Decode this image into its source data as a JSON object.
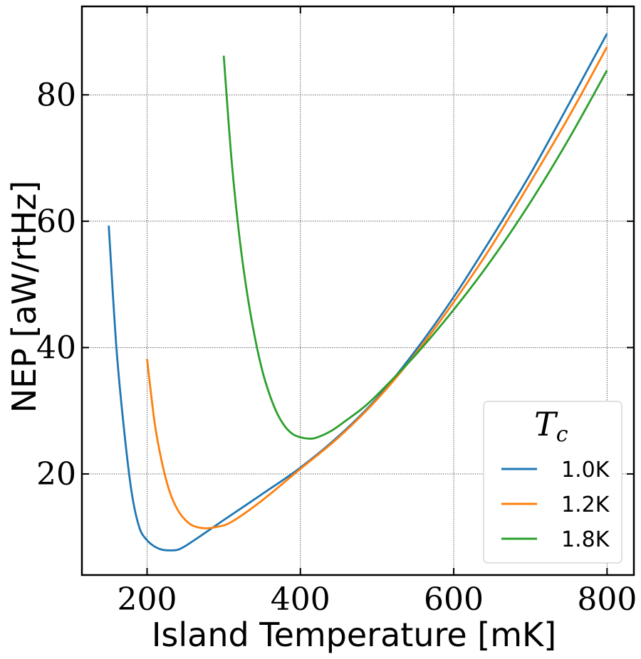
{
  "chart_data": {
    "type": "line",
    "title": "",
    "xlabel": "Island Temperature [mK]",
    "ylabel": "NEP [aW/rtHz]",
    "xlim": [
      115,
      835
    ],
    "ylim": [
      4,
      94
    ],
    "xticks": [
      200,
      400,
      600,
      800
    ],
    "yticks": [
      20,
      40,
      60,
      80
    ],
    "grid": true,
    "legend": {
      "title_main": "T",
      "title_sub": "c",
      "placement": "lower-right"
    },
    "series": [
      {
        "name": "1.0K",
        "color": "#1f77b4",
        "x": [
          150,
          160,
          170,
          180,
          190,
          200,
          210,
          220,
          230,
          240,
          250,
          270,
          300,
          350,
          400,
          450,
          500,
          550,
          600,
          650,
          700,
          750,
          800
        ],
        "y": [
          59.3,
          40.0,
          27.0,
          17.0,
          11.5,
          9.5,
          8.5,
          8.0,
          7.9,
          8.0,
          8.6,
          10.2,
          12.7,
          16.8,
          21.0,
          26.0,
          32.0,
          39.5,
          48.0,
          57.5,
          67.5,
          78.5,
          89.7
        ]
      },
      {
        "name": "1.2K",
        "color": "#ff7f0e",
        "x": [
          200,
          210,
          220,
          230,
          240,
          250,
          260,
          275,
          290,
          310,
          350,
          400,
          450,
          500,
          550,
          600,
          650,
          700,
          750,
          800
        ],
        "y": [
          38.2,
          28.0,
          21.5,
          17.0,
          14.3,
          12.7,
          11.8,
          11.4,
          11.6,
          12.4,
          15.8,
          20.8,
          25.8,
          31.8,
          39.0,
          47.2,
          56.2,
          66.2,
          76.5,
          87.6
        ]
      },
      {
        "name": "1.8K",
        "color": "#2ca02c",
        "x": [
          300,
          310,
          320,
          330,
          340,
          350,
          360,
          370,
          380,
          390,
          400,
          410,
          420,
          440,
          460,
          480,
          500,
          550,
          600,
          650,
          700,
          750,
          800
        ],
        "y": [
          86.2,
          70.0,
          58.0,
          49.0,
          42.0,
          36.5,
          32.5,
          29.5,
          27.5,
          26.3,
          25.8,
          25.6,
          25.7,
          26.8,
          28.5,
          30.3,
          32.5,
          38.8,
          46.0,
          54.0,
          63.0,
          73.0,
          83.9
        ]
      }
    ]
  }
}
